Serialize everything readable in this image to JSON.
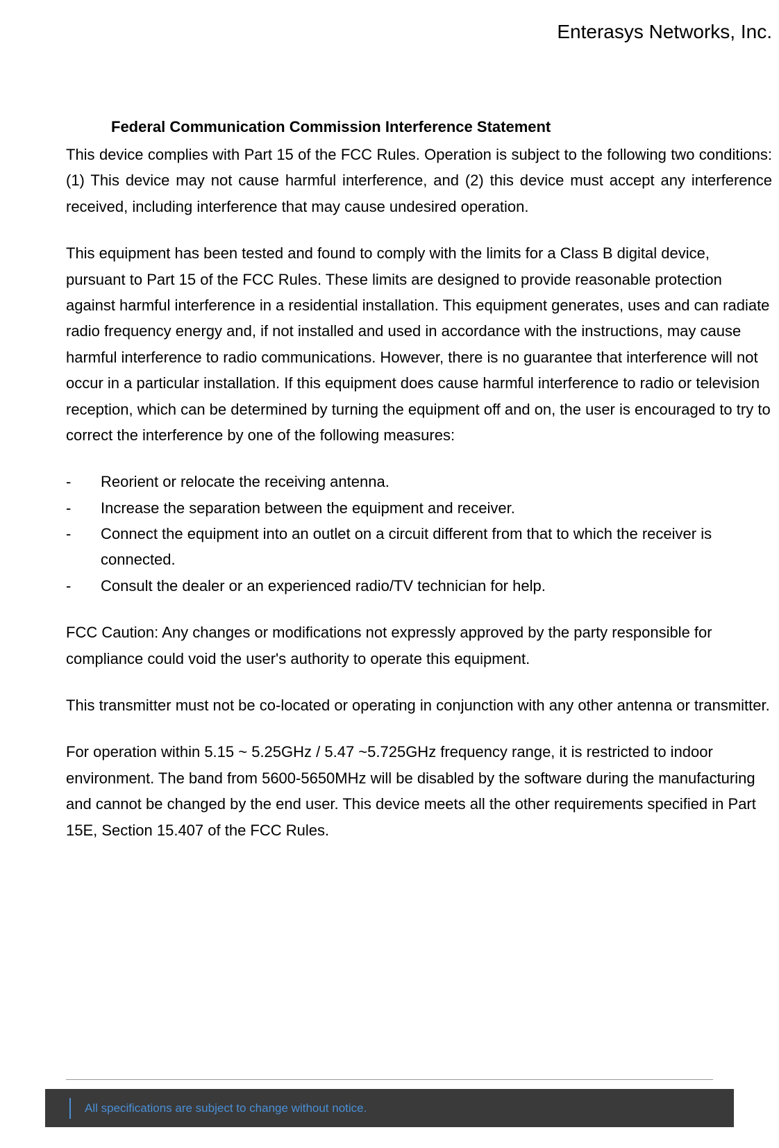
{
  "header": {
    "company": "Enterasys Networks, Inc."
  },
  "document": {
    "title": "Federal Communication Commission Interference Statement",
    "para1": "This device complies with Part 15 of the FCC Rules. Operation is subject to the following two conditions: (1) This device may not cause harmful interference, and (2) this device must accept any interference received, including interference that may cause undesired operation.",
    "para2": "This equipment has been tested and found to comply with the limits for a Class B digital device, pursuant to Part 15 of the FCC Rules. These limits are designed to provide reasonable protection against harmful interference in a residential installation. This equipment generates, uses and can radiate radio frequency energy and, if not installed and used in accordance with the instructions, may cause harmful interference to radio communications. However, there is no guarantee that interference will not occur in a particular installation. If this equipment does cause harmful interference to radio or television reception, which can be determined by turning the equipment off and on, the user is encouraged to try to correct the interference by one of the following measures:",
    "list": [
      "Reorient or relocate the receiving antenna.",
      "Increase the separation between the equipment and receiver.",
      "Connect the equipment into an outlet on a circuit different from that to which the receiver is connected.",
      "Consult the dealer or an experienced radio/TV technician for help."
    ],
    "para3": "FCC Caution: Any changes or modifications not expressly approved by the party responsible for compliance could void the user's authority to operate this equipment.",
    "para4": "This transmitter must not be co-located or operating in conjunction with any other antenna or transmitter.",
    "para5": "For operation within 5.15 ~ 5.25GHz / 5.47 ~5.725GHz frequency range, it is restricted to indoor environment. The band from 5600-5650MHz will be disabled by the software during the manufacturing and cannot be changed by the end user. This device meets all the other requirements specified in Part 15E, Section 15.407 of the FCC Rules."
  },
  "footer": {
    "text": "All specifications are subject to change without notice."
  },
  "colors": {
    "text": "#000000",
    "background": "#ffffff",
    "footer_bg": "#3a3a3a",
    "footer_accent": "#4a8fd6",
    "hr": "#999999"
  },
  "typography": {
    "body_fontsize": 22,
    "header_fontsize": 28,
    "footer_fontsize": 17,
    "line_height": 1.7
  }
}
